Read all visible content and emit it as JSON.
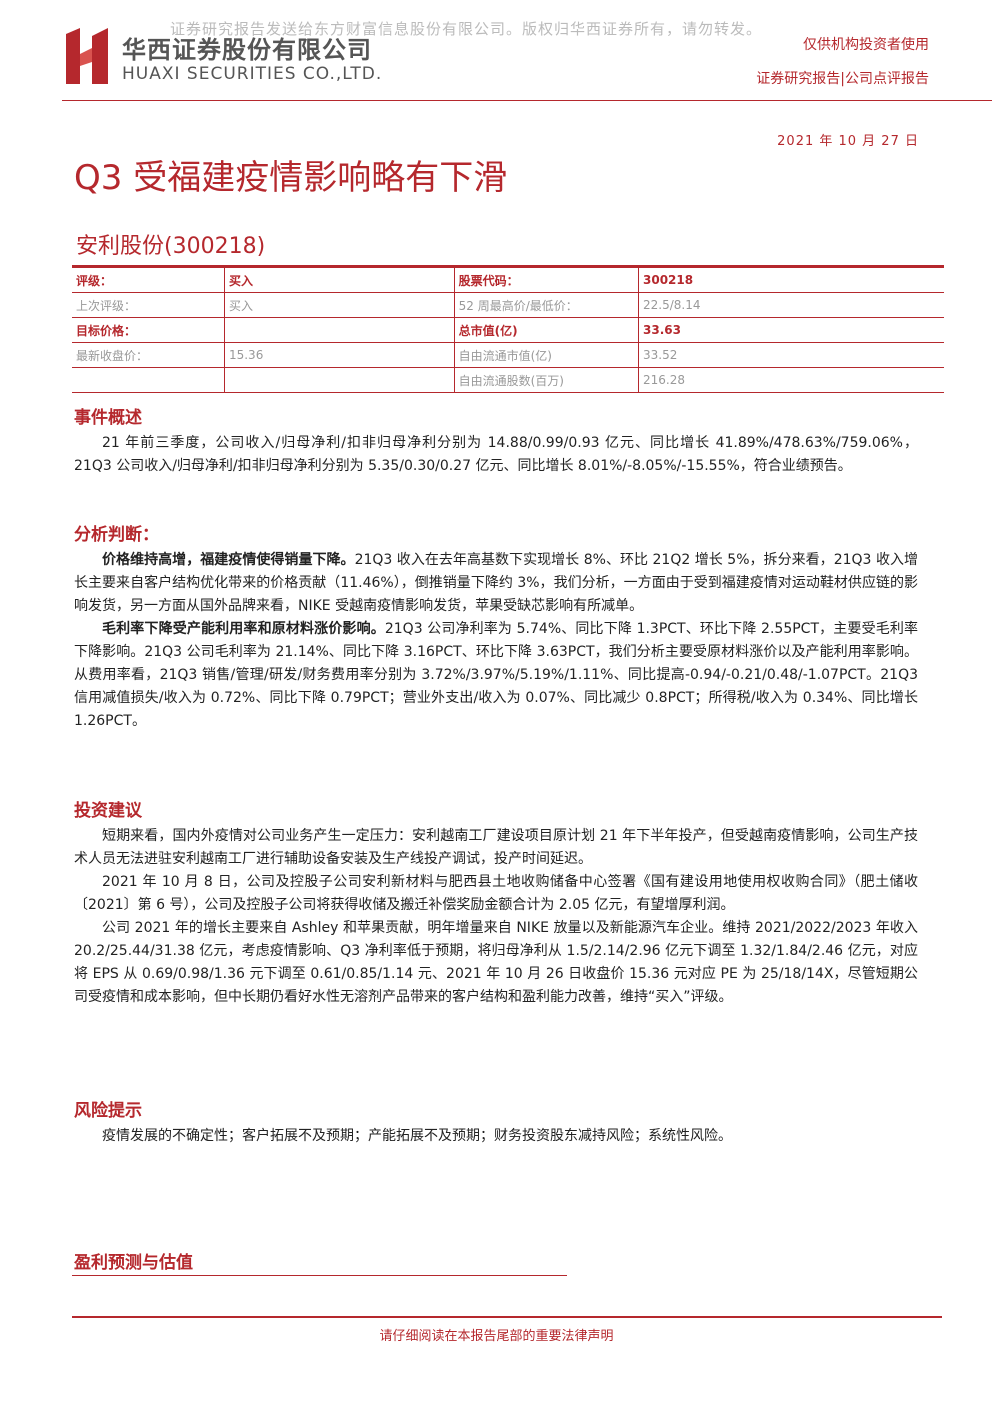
{
  "watermark": "证券研究报告发送给东方财富信息股份有限公司。版权归华西证券所有，请勿转发。",
  "header": {
    "company_cn": "华西证券股份有限公司",
    "company_en": "HUAXI SECURITIES CO.,LTD.",
    "audience": "仅供机构投资者使用",
    "report_type": "证券研究报告|公司点评报告"
  },
  "date": "2021 年 10 月 27 日",
  "title": "Q3 受福建疫情影响略有下滑",
  "stock": "安利股份(300218)",
  "table": {
    "rows": [
      [
        "评级：",
        "买入",
        "股票代码：",
        "300218"
      ],
      [
        "上次评级：",
        "买入",
        "52 周最高价/最低价：",
        "22.5/8.14"
      ],
      [
        "目标价格：",
        "",
        "总市值(亿)",
        "33.63"
      ],
      [
        "最新收盘价：",
        "15.36",
        "自由流通市值(亿)",
        "33.52"
      ],
      [
        "",
        "",
        "自由流通股数(百万)",
        "216.28"
      ]
    ]
  },
  "sections": [
    {
      "heading": "事件概述",
      "paragraphs": [
        {
          "text": "21 年前三季度，公司收入/归母净利/扣非归母净利分别为 14.88/0.99/0.93 亿元、同比增长 41.89%/478.63%/759.06%，21Q3 公司收入/归母净利/扣非归母净利分别为 5.35/0.30/0.27 亿元、同比增长 8.01%/-8.05%/-15.55%，符合业绩预告。"
        }
      ]
    },
    {
      "heading": "分析判断：",
      "paragraphs": [
        {
          "lead": "价格维持高增，福建疫情使得销量下降。",
          "text": "21Q3 收入在去年高基数下实现增长 8%、环比 21Q2 增长 5%，拆分来看，21Q3 收入增长主要来自客户结构优化带来的价格贡献（11.46%），倒推销量下降约 3%，我们分析，一方面由于受到福建疫情对运动鞋材供应链的影响发货，另一方面从国外品牌来看，NIKE 受越南疫情影响发货，苹果受缺芯影响有所减单。"
        },
        {
          "lead": "毛利率下降受产能利用率和原材料涨价影响。",
          "text": "21Q3 公司净利率为 5.74%、同比下降 1.3PCT、环比下降 2.55PCT，主要受毛利率下降影响。21Q3 公司毛利率为 21.14%、同比下降 3.16PCT、环比下降 3.63PCT，我们分析主要受原材料涨价以及产能利用率影响。从费用率看，21Q3 销售/管理/研发/财务费用率分别为 3.72%/3.97%/5.19%/1.11%、同比提高-0.94/-0.21/0.48/-1.07PCT。21Q3 信用减值损失/收入为 0.72%、同比下降 0.79PCT；营业外支出/收入为 0.07%、同比减少 0.8PCT；所得税/收入为 0.34%、同比增长 1.26PCT。"
        }
      ]
    },
    {
      "heading": "投资建议",
      "paragraphs": [
        {
          "text": "短期来看，国内外疫情对公司业务产生一定压力：安利越南工厂建设项目原计划 21 年下半年投产，但受越南疫情影响，公司生产技术人员无法进驻安利越南工厂进行辅助设备安装及生产线投产调试，投产时间延迟。"
        },
        {
          "text": "2021 年 10 月 8 日，公司及控股子公司安利新材料与肥西县土地收购储备中心签署《国有建设用地使用权收购合同》（肥土储收〔2021〕第 6 号），公司及控股子公司将获得收储及搬迁补偿奖励金额合计为 2.05 亿元，有望增厚利润。"
        },
        {
          "text": "公司 2021 年的增长主要来自 Ashley 和苹果贡献，明年增量来自 NIKE 放量以及新能源汽车企业。维持 2021/2022/2023 年收入 20.2/25.44/31.38 亿元，考虑疫情影响、Q3 净利率低于预期，将归母净利从 1.5/2.14/2.96 亿元下调至 1.32/1.84/2.46 亿元，对应将 EPS 从 0.69/0.98/1.36 元下调至 0.61/0.85/1.14 元、2021 年 10 月 26 日收盘价 15.36 元对应 PE 为 25/18/14X，尽管短期公司受疫情和成本影响，但中长期仍看好水性无溶剂产品带来的客户结构和盈利能力改善，维持“买入”评级。"
        }
      ]
    },
    {
      "heading": "风险提示",
      "paragraphs": [
        {
          "text": "疫情发展的不确定性；客户拓展不及预期；产能拓展不及预期；财务投资股东减持风险；系统性风险。"
        }
      ]
    }
  ],
  "forecast_heading": "盈利预测与估值",
  "footer": "请仔细阅读在本报告尾部的重要法律声明"
}
